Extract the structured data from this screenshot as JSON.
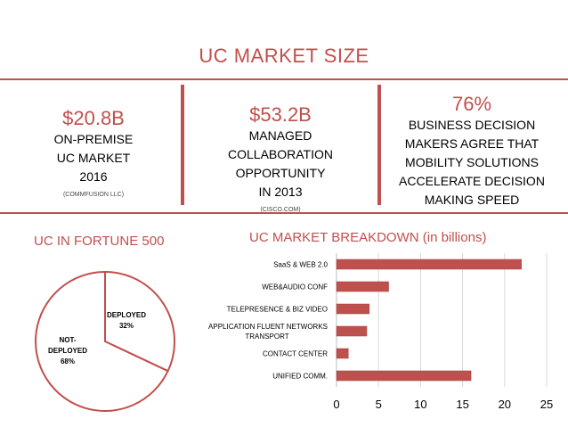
{
  "title": "UC MARKET SIZE",
  "stats": [
    {
      "value": "$20.8B",
      "desc": [
        "ON-PREMISE",
        "UC MARKET",
        "2016"
      ],
      "source": "(COMMFUSION LLC)"
    },
    {
      "value": "$53.2B",
      "desc": [
        "MANAGED",
        "COLLABORATION",
        "OPPORTUNITY",
        "IN 2013"
      ],
      "source": "(CISCO.COM)"
    },
    {
      "value": "76%",
      "desc": [
        "BUSINESS DECISION",
        "MAKERS AGREE THAT",
        "MOBILITY SOLUTIONS",
        "ACCELERATE DECISION",
        "MAKING SPEED"
      ],
      "source": ""
    }
  ],
  "colors": {
    "accent": "#c0504d",
    "bar": "#c0504d",
    "grid": "#d9d9d9"
  },
  "chart_data": [
    {
      "type": "pie",
      "title": "UC IN FORTUNE 500",
      "slices": [
        {
          "label": [
            "DEPLOYED",
            "32%"
          ],
          "value": 32
        },
        {
          "label": [
            "NOT-",
            "DEPLOYED",
            "68%"
          ],
          "value": 68
        }
      ]
    },
    {
      "type": "bar",
      "orientation": "horizontal",
      "title": "UC MARKET BREAKDOWN (in billions)",
      "categories": [
        [
          "SaaS & WEB 2.0"
        ],
        [
          "WEB&AUDIO CONF"
        ],
        [
          "TELEPRESENCE & BIZ VIDEO"
        ],
        [
          "APPLICATION FLUENT NETWORKS",
          "TRANSPORT"
        ],
        [
          "CONTACT CENTER"
        ],
        [
          "UNIFIED COMM."
        ]
      ],
      "values": [
        22,
        6.2,
        3.9,
        3.6,
        1.4,
        16
      ],
      "xlim": [
        0,
        25
      ],
      "ticks": [
        "0",
        "5",
        "10",
        "15",
        "20",
        "25"
      ],
      "grid": true
    }
  ]
}
